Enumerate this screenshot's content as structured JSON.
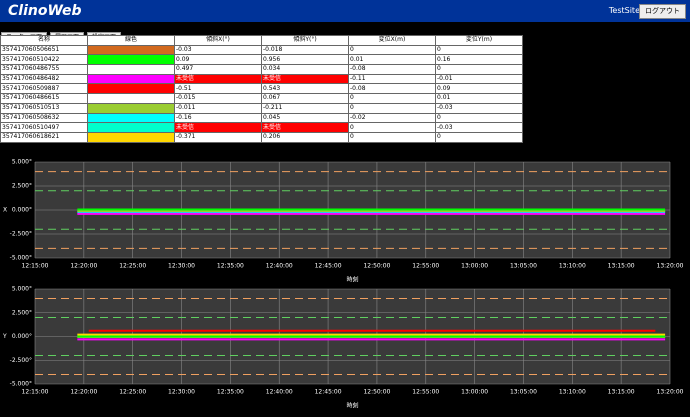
{
  "header": {
    "title": "ClinoWeb",
    "site": "TestSite",
    "logout": "ログアウト"
  },
  "nav": [
    "モニター画面",
    "履歴画面",
    "設定画面"
  ],
  "table": {
    "columns": [
      "名称",
      "線色",
      "傾斜X(°)",
      "傾斜Y(°)",
      "変位X(m)",
      "変位Y(m)"
    ],
    "rows": [
      {
        "name": "357417060506651",
        "color": "#d2691e",
        "values": [
          -0.03,
          -0.018,
          0,
          0
        ]
      },
      {
        "name": "357417060510422",
        "color": "#00ff00",
        "values": [
          0.09,
          0.956,
          0.01,
          0.16
        ]
      },
      {
        "name": "357417060486755",
        "color": "#ffffff",
        "values": [
          0.497,
          0.034,
          -0.08,
          0
        ]
      },
      {
        "name": "357417060486482",
        "color": "#ff00ff",
        "values": [
          "未受信",
          "未受信",
          -0.11,
          -0.01
        ]
      },
      {
        "name": "357417060509887",
        "color": "#ff0000",
        "values": [
          -0.51,
          0.543,
          -0.08,
          0.09
        ]
      },
      {
        "name": "357417060486615",
        "color": "#ffffff",
        "values": [
          -0.015,
          0.067,
          0,
          0.01
        ]
      },
      {
        "name": "357417060510513",
        "color": "#9acd32",
        "values": [
          -0.011,
          -0.211,
          0,
          -0.03
        ]
      },
      {
        "name": "357417060508632",
        "color": "#00ffff",
        "values": [
          -0.16,
          0.045,
          -0.02,
          0
        ]
      },
      {
        "name": "357417060510497",
        "color": "#00ffcc",
        "values": [
          "未受信",
          "未受信",
          0,
          -0.03
        ]
      },
      {
        "name": "357417060618621",
        "color": "#ffd700",
        "values": [
          -0.371,
          0.206,
          0,
          0
        ]
      }
    ]
  },
  "charts": [
    {
      "type": "line",
      "ylabel": "X",
      "xlabel": "時刻",
      "xlim": [
        "12:15:00",
        "13:20:00"
      ],
      "xticks": [
        "12:15:00",
        "12:20:00",
        "12:25:00",
        "12:30:00",
        "12:35:00",
        "12:40:00",
        "12:45:00",
        "12:50:00",
        "12:55:00",
        "13:00:00",
        "13:05:00",
        "13:10:00",
        "13:15:00",
        "13:20:00"
      ],
      "ylim": [
        -5,
        5
      ],
      "yticks": [
        {
          "value": 5,
          "label": "5.000°"
        },
        {
          "value": 2.5,
          "label": "2.500°"
        },
        {
          "value": 0,
          "label": "0.000°"
        },
        {
          "value": -2.5,
          "label": "-2.500°"
        },
        {
          "value": -5,
          "label": "-5.000°"
        }
      ],
      "thresholds": [
        {
          "value": 4,
          "color": "#f0a060"
        },
        {
          "value": 2,
          "color": "#60d060"
        },
        {
          "value": -2,
          "color": "#60d060"
        },
        {
          "value": -4,
          "color": "#f0a060"
        }
      ],
      "series": [
        {
          "name": "357417060508632",
          "color": "#00ffff",
          "x": [
            "12:19:20",
            "13:19:30"
          ],
          "values": [
            -0.2,
            -0.2
          ]
        },
        {
          "name": "357417060486482",
          "color": "#ff00ff",
          "x": [
            "12:19:20",
            "13:19:30"
          ],
          "values": [
            -0.4,
            -0.4
          ]
        },
        {
          "name": "357417060510513",
          "color": "#9acd32",
          "x": [
            "12:19:20",
            "13:19:30"
          ],
          "values": [
            -0.1,
            -0.1
          ]
        },
        {
          "name": "357417060510422",
          "color": "#00ff00",
          "x": [
            "12:19:20",
            "13:19:30"
          ],
          "values": [
            0.05,
            0.05
          ]
        }
      ]
    },
    {
      "type": "line",
      "ylabel": "Y",
      "xlabel": "時刻",
      "xlim": [
        "12:15:00",
        "13:20:00"
      ],
      "xticks": [
        "12:15:00",
        "12:20:00",
        "12:25:00",
        "12:30:00",
        "12:35:00",
        "12:40:00",
        "12:45:00",
        "12:50:00",
        "12:55:00",
        "13:00:00",
        "13:05:00",
        "13:10:00",
        "13:15:00",
        "13:20:00"
      ],
      "ylim": [
        -5,
        5
      ],
      "yticks": [
        {
          "value": 5,
          "label": "5.000°"
        },
        {
          "value": 2.5,
          "label": "2.500°"
        },
        {
          "value": 0,
          "label": "0.000°"
        },
        {
          "value": -2.5,
          "label": "-2.500°"
        },
        {
          "value": -5,
          "label": "-5.000°"
        }
      ],
      "thresholds": [
        {
          "value": 4,
          "color": "#f0a060"
        },
        {
          "value": 2,
          "color": "#60d060"
        },
        {
          "value": -2,
          "color": "#60d060"
        },
        {
          "value": -4,
          "color": "#f0a060"
        }
      ],
      "series": [
        {
          "name": "357417060509887",
          "color": "#ff0000",
          "x": [
            "12:20:30",
            "13:18:30"
          ],
          "values": [
            0.6,
            0.6
          ]
        },
        {
          "name": "357417060618621",
          "color": "#ffd700",
          "x": [
            "12:19:20",
            "13:19:30"
          ],
          "values": [
            0.2,
            0.2
          ]
        },
        {
          "name": "357417060486482",
          "color": "#ff00ff",
          "x": [
            "12:19:20",
            "13:19:30"
          ],
          "values": [
            -0.3,
            -0.3
          ]
        },
        {
          "name": "357417060510513",
          "color": "#9acd32",
          "x": [
            "12:19:20",
            "13:19:30"
          ],
          "values": [
            -0.05,
            -0.05
          ]
        },
        {
          "name": "357417060510422",
          "color": "#00ff00",
          "x": [
            "12:19:20",
            "13:19:30"
          ],
          "values": [
            0,
            0
          ]
        }
      ]
    }
  ]
}
